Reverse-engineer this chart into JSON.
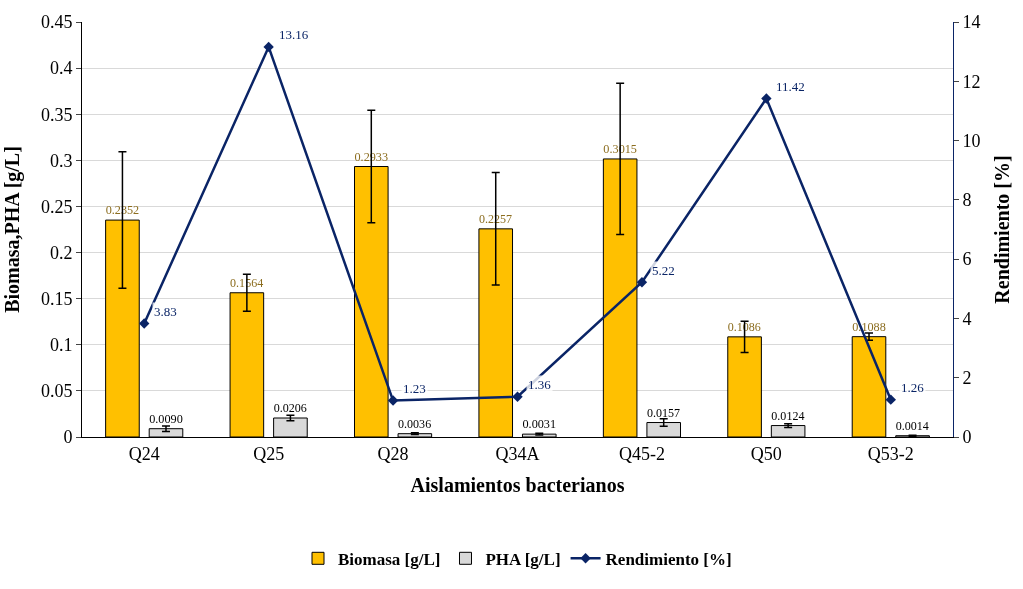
{
  "chart_data": {
    "type": "bar",
    "xlabel": "Aislamientos bacterianos",
    "ylabel": "Biomasa,PHA [g/L]",
    "y2label": "Rendimiento [%]",
    "categories": [
      "Q24",
      "Q25",
      "Q28",
      "Q34A",
      "Q45-2",
      "Q50",
      "Q53-2"
    ],
    "series": [
      {
        "name": "Biomasa [g/L]",
        "color": "#ffc000",
        "values": [
          0.2352,
          0.1564,
          0.2933,
          0.2257,
          0.3015,
          0.1086,
          0.1088
        ],
        "errors": [
          0.074,
          0.02,
          0.061,
          0.061,
          0.082,
          0.017,
          0.004
        ],
        "value_labels": [
          "0.2352",
          "0.1564",
          "0.2933",
          "0.2257",
          "0.3015",
          "0.1086",
          "0.1088"
        ]
      },
      {
        "name": "PHA [g/L]",
        "color": "#d9d9d9",
        "values": [
          0.009,
          0.0206,
          0.0036,
          0.0031,
          0.0157,
          0.0124,
          0.0014
        ],
        "errors": [
          0.003,
          0.003,
          0.001,
          0.001,
          0.004,
          0.002,
          0.0005
        ],
        "value_labels": [
          "0.0090",
          "0.0206",
          "0.0036",
          "0.0031",
          "0.0157",
          "0.0124",
          "0.0014"
        ]
      },
      {
        "name": "Rendimiento [%]",
        "type": "line",
        "axis": "y2",
        "color": "#0a2466",
        "marker": "diamond",
        "values": [
          3.83,
          13.16,
          1.23,
          1.36,
          5.22,
          11.42,
          1.26
        ],
        "value_labels": [
          "3.83",
          "13.16",
          "1.23",
          "1.36",
          "5.22",
          "11.42",
          "1.26"
        ]
      }
    ],
    "ylim": [
      0,
      0.45
    ],
    "yticks": [
      {
        "value": 0,
        "label": "0"
      },
      0.05,
      {
        "value": 0.1,
        "label": "0.1"
      },
      0.15,
      {
        "value": 0.2,
        "label": "0.2"
      },
      0.25,
      {
        "value": 0.3,
        "label": "0.3"
      },
      0.35,
      {
        "value": 0.4,
        "label": "0.4"
      },
      0.45
    ],
    "y2lim": [
      0,
      14
    ],
    "y2ticks": [
      0,
      2,
      4,
      6,
      8,
      10,
      12,
      14
    ],
    "grid": "y",
    "legend": "bottom"
  }
}
